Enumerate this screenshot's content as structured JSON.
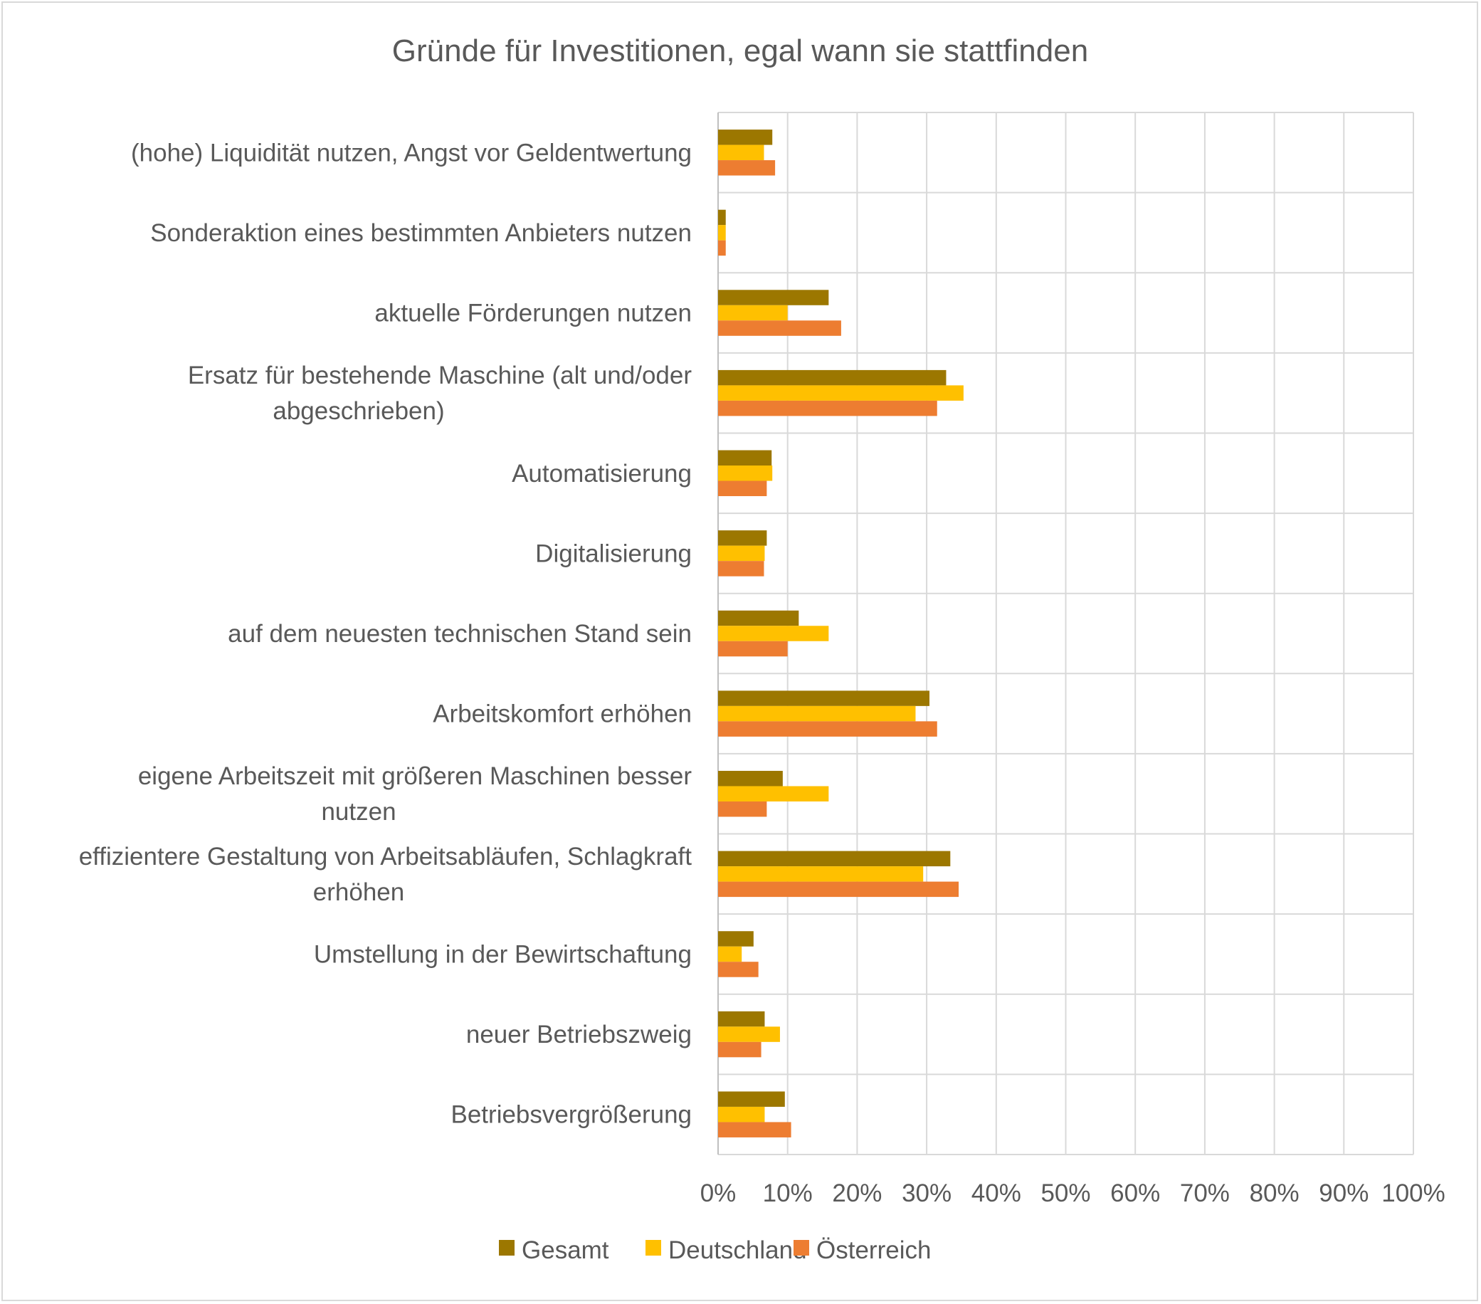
{
  "chart_data": {
    "type": "bar",
    "orientation": "horizontal",
    "title": "Gründe für Investitionen, egal wann sie stattfinden",
    "xlabel": "",
    "ylabel": "",
    "xlim": [
      0,
      100
    ],
    "x_ticks": [
      "0%",
      "10%",
      "20%",
      "30%",
      "40%",
      "50%",
      "60%",
      "70%",
      "80%",
      "90%",
      "100%"
    ],
    "grid": true,
    "legend_position": "bottom",
    "categories": [
      [
        "(hohe) Liquidität nutzen, Angst vor Geldentwertung"
      ],
      [
        "Sonderaktion eines bestimmten Anbieters nutzen"
      ],
      [
        "aktuelle Förderungen nutzen"
      ],
      [
        "Ersatz für bestehende Maschine (alt und/oder",
        "abgeschrieben)"
      ],
      [
        "Automatisierung"
      ],
      [
        "Digitalisierung"
      ],
      [
        "auf dem neuesten technischen Stand sein"
      ],
      [
        "Arbeitskomfort erhöhen"
      ],
      [
        "eigene Arbeitszeit mit größeren Maschinen besser",
        "nutzen"
      ],
      [
        "effizientere Gestaltung von Arbeitsabläufen, Schlagkraft",
        "erhöhen"
      ],
      [
        "Umstellung in der Bewirtschaftung"
      ],
      [
        "neuer Betriebszweig"
      ],
      [
        "Betriebsvergrößerung"
      ]
    ],
    "series": [
      {
        "name": "Gesamt",
        "color": "#9c7700",
        "values": [
          7.8,
          1.1,
          15.9,
          32.8,
          7.7,
          7.0,
          11.6,
          30.4,
          9.3,
          33.4,
          5.1,
          6.7,
          9.6
        ]
      },
      {
        "name": "Deutschland",
        "color": "#ffc000",
        "values": [
          6.6,
          1.1,
          10.0,
          35.3,
          7.8,
          6.7,
          15.9,
          28.4,
          15.9,
          29.5,
          3.4,
          8.9,
          6.7
        ]
      },
      {
        "name": "Österreich",
        "color": "#ed7d31",
        "values": [
          8.2,
          1.1,
          17.7,
          31.5,
          7.0,
          6.6,
          10.0,
          31.5,
          7.0,
          34.6,
          5.8,
          6.2,
          10.5
        ]
      }
    ]
  }
}
